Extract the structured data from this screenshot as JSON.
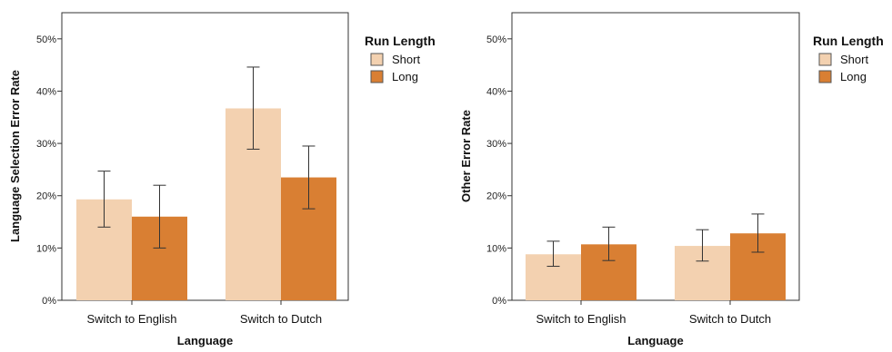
{
  "colors": {
    "short": "#f3d1b0",
    "long": "#d97f33",
    "frame": "#333333",
    "error_bar": "#333333"
  },
  "chart_data": [
    {
      "type": "bar",
      "xlabel": "Language",
      "ylabel": "Language Selection Error Rate",
      "categories": [
        "Switch to English",
        "Switch to Dutch"
      ],
      "yticks": [
        "0%",
        "10%",
        "20%",
        "30%",
        "40%",
        "50%"
      ],
      "ylim": [
        0,
        0.55
      ],
      "legend": {
        "title": "Run Length",
        "placement": "right"
      },
      "series": [
        {
          "name": "Short",
          "values": [
            0.193,
            0.367
          ],
          "err_low": [
            0.14,
            0.289
          ],
          "err_high": [
            0.247,
            0.446
          ]
        },
        {
          "name": "Long",
          "values": [
            0.16,
            0.235
          ],
          "err_low": [
            0.1,
            0.175
          ],
          "err_high": [
            0.22,
            0.295
          ]
        }
      ]
    },
    {
      "type": "bar",
      "xlabel": "Language",
      "ylabel": "Other Error Rate",
      "categories": [
        "Switch to English",
        "Switch to Dutch"
      ],
      "yticks": [
        "0%",
        "10%",
        "20%",
        "30%",
        "40%",
        "50%"
      ],
      "ylim": [
        0,
        0.55
      ],
      "legend": {
        "title": "Run Length",
        "placement": "right"
      },
      "series": [
        {
          "name": "Short",
          "values": [
            0.088,
            0.104
          ],
          "err_low": [
            0.065,
            0.075
          ],
          "err_high": [
            0.113,
            0.135
          ]
        },
        {
          "name": "Long",
          "values": [
            0.107,
            0.128
          ],
          "err_low": [
            0.076,
            0.092
          ],
          "err_high": [
            0.14,
            0.165
          ]
        }
      ]
    }
  ]
}
